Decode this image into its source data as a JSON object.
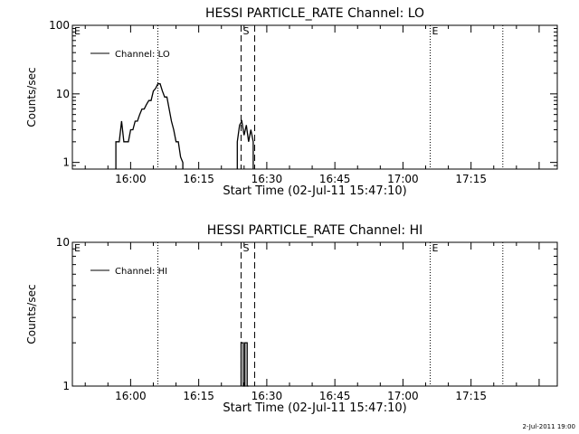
{
  "footer_stamp": "2-Jul-2011 19:00",
  "chart_data": [
    {
      "type": "line",
      "title": "HESSI PARTICLE_RATE Channel: LO",
      "xlabel": "Start Time (02-Jul-11 15:47:10)",
      "ylabel": "Counts/sec",
      "y_scale": "log",
      "xlim": [
        "15:47:10",
        "17:34:00"
      ],
      "ylim": [
        0.8,
        100
      ],
      "x_ticks": [
        "16:00",
        "16:15",
        "16:30",
        "16:45",
        "17:00",
        "17:15"
      ],
      "y_ticks": [
        "1",
        "10",
        "100"
      ],
      "legend": {
        "position": "top-left",
        "entries": [
          "Channel: LO"
        ]
      },
      "markers": [
        {
          "label": "E",
          "time": "15:47:10",
          "style": "none"
        },
        {
          "label": "",
          "time": "16:06:00",
          "style": "dotted"
        },
        {
          "label": "S",
          "time": "16:24:20",
          "style": "dashed"
        },
        {
          "label": "",
          "time": "16:27:20",
          "style": "dashed"
        },
        {
          "label": "E",
          "time": "17:06:00",
          "style": "dotted"
        },
        {
          "label": "",
          "time": "17:22:00",
          "style": "dotted"
        }
      ],
      "series": [
        {
          "name": "Channel: LO",
          "x": [
            "15:56:45",
            "15:56:45",
            "15:57:30",
            "15:58:00",
            "15:58:30",
            "15:59:00",
            "15:59:30",
            "16:00:00",
            "16:00:30",
            "16:01:00",
            "16:01:30",
            "16:02:00",
            "16:02:30",
            "16:03:00",
            "16:03:30",
            "16:04:00",
            "16:04:30",
            "16:05:00",
            "16:05:30",
            "16:06:00",
            "16:06:30",
            "16:07:00",
            "16:07:30",
            "16:08:00",
            "16:08:30",
            "16:09:00",
            "16:09:30",
            "16:10:00",
            "16:10:30",
            "16:11:00",
            "16:11:30",
            "16:11:30"
          ],
          "values": [
            0.8,
            2.0,
            2.0,
            4.0,
            2.0,
            2.0,
            2.0,
            3.0,
            3.0,
            4.0,
            4.0,
            5.0,
            6.0,
            6.0,
            7.0,
            8.0,
            8.0,
            11.0,
            12.0,
            14.0,
            14.0,
            11.0,
            9.0,
            9.0,
            6.0,
            4.0,
            3.0,
            2.0,
            2.0,
            1.2,
            1.0,
            0.8
          ]
        },
        {
          "name": "",
          "x": [
            "16:23:30",
            "16:23:30",
            "16:24:00",
            "16:24:30",
            "16:25:00",
            "16:25:30",
            "16:26:00",
            "16:26:30",
            "16:27:00",
            "16:27:00"
          ],
          "values": [
            0.8,
            2.0,
            3.5,
            4.0,
            2.5,
            3.5,
            2.0,
            3.0,
            2.0,
            0.8
          ]
        }
      ]
    },
    {
      "type": "line",
      "title": "HESSI PARTICLE_RATE Channel: HI",
      "xlabel": "Start Time (02-Jul-11 15:47:10)",
      "ylabel": "Counts/sec",
      "y_scale": "log",
      "xlim": [
        "15:47:10",
        "17:34:00"
      ],
      "ylim": [
        1,
        10
      ],
      "x_ticks": [
        "16:00",
        "16:15",
        "16:30",
        "16:45",
        "17:00",
        "17:15"
      ],
      "y_ticks": [
        "1",
        "10"
      ],
      "legend": {
        "position": "top-left",
        "entries": [
          "Channel: HI"
        ]
      },
      "markers": [
        {
          "label": "E",
          "time": "15:47:10",
          "style": "none"
        },
        {
          "label": "",
          "time": "16:06:00",
          "style": "dotted"
        },
        {
          "label": "S",
          "time": "16:24:20",
          "style": "dashed"
        },
        {
          "label": "",
          "time": "16:27:20",
          "style": "dashed"
        },
        {
          "label": "E",
          "time": "17:06:00",
          "style": "dotted"
        },
        {
          "label": "",
          "time": "17:22:00",
          "style": "dotted"
        }
      ],
      "series": [
        {
          "name": "Channel: HI",
          "x": [
            "16:24:20",
            "16:24:20",
            "16:24:50",
            "16:24:50",
            "16:25:10",
            "16:25:10",
            "16:25:40",
            "16:25:40",
            "16:26:00",
            "16:26:00"
          ],
          "values": [
            1.0,
            2.0,
            2.0,
            1.0,
            1.0,
            2.0,
            2.0,
            1.0,
            1.0,
            1.0
          ]
        }
      ]
    }
  ]
}
